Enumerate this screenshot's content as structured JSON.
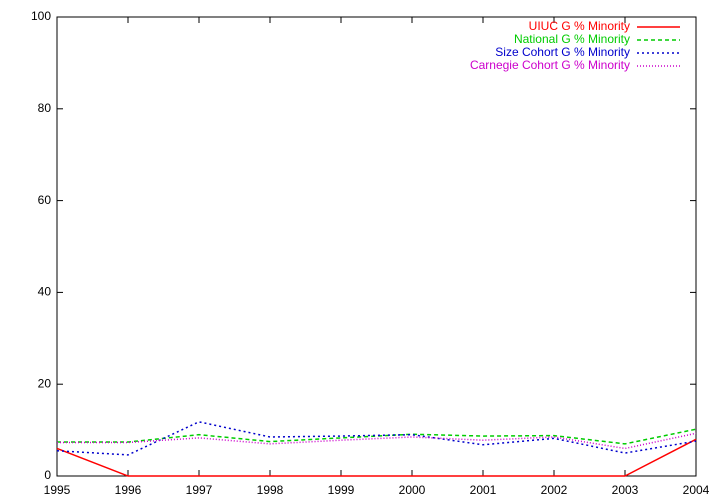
{
  "chart_data": {
    "type": "line",
    "x": [
      1995,
      1996,
      1997,
      1998,
      1999,
      2000,
      2001,
      2002,
      2003,
      2004
    ],
    "series": [
      {
        "name": "UIUC G % Minority",
        "color": "#ff0000",
        "values": [
          6,
          0,
          0,
          0,
          0,
          0,
          0,
          0,
          0,
          8
        ]
      },
      {
        "name": "National G % Minority",
        "color": "#00cc00",
        "values": [
          7.4,
          7.4,
          9,
          7.5,
          8.3,
          9.1,
          8.7,
          8.8,
          7,
          10.2
        ]
      },
      {
        "name": "Size Cohort G % Minority",
        "color": "#0000cc",
        "values": [
          5.5,
          4.6,
          11.8,
          8.5,
          8.7,
          9,
          6.8,
          8.2,
          5,
          7.6
        ]
      },
      {
        "name": "Carnegie Cohort G % Minority",
        "color": "#cc00cc",
        "values": [
          7.3,
          7.3,
          8.3,
          7,
          7.8,
          8.5,
          7.8,
          8.5,
          6,
          9.3
        ]
      }
    ],
    "xlim": [
      1995,
      2004
    ],
    "xticks": [
      1995,
      1996,
      1997,
      1998,
      1999,
      2000,
      2001,
      2002,
      2003,
      2004
    ],
    "ylim": [
      0,
      100
    ],
    "yticks": [
      0,
      20,
      40,
      60,
      80,
      100
    ],
    "legend": "top-right"
  }
}
